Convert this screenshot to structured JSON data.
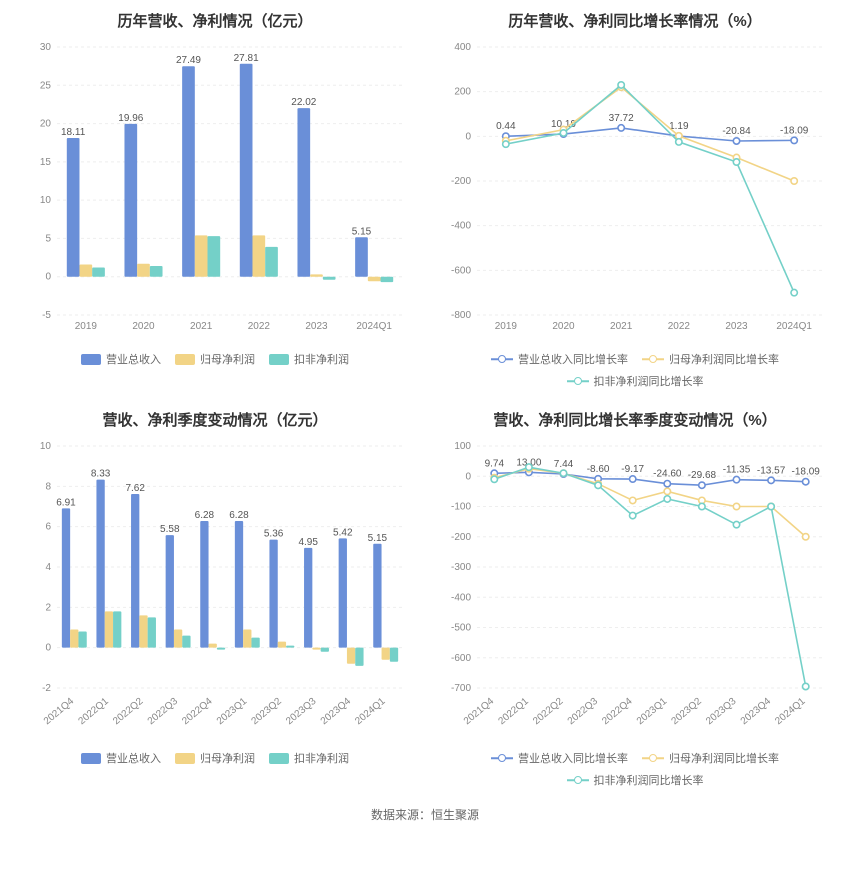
{
  "footer": "数据来源：恒生聚源",
  "colors": {
    "blue": "#6a8fd8",
    "yellow": "#f2d486",
    "teal": "#74d0c8",
    "grid": "#eeeeee",
    "axis": "#cccccc",
    "text": "#888888",
    "value": "#555555",
    "bg": "#ffffff"
  },
  "panels": [
    {
      "title": "历年营收、净利情况（亿元）",
      "type": "bar",
      "categories": [
        "2019",
        "2020",
        "2021",
        "2022",
        "2023",
        "2024Q1"
      ],
      "ylim": [
        -5,
        30
      ],
      "ytick_step": 5,
      "bar_width_ratio": 0.22,
      "series": [
        {
          "name": "营业总收入",
          "color": "#6a8fd8",
          "values": [
            18.11,
            19.96,
            27.49,
            27.81,
            22.02,
            5.15
          ],
          "show_label": true
        },
        {
          "name": "归母净利润",
          "color": "#f2d486",
          "values": [
            1.6,
            1.7,
            5.4,
            5.4,
            0.3,
            -0.6
          ],
          "show_label": false
        },
        {
          "name": "扣非净利润",
          "color": "#74d0c8",
          "values": [
            1.2,
            1.4,
            5.3,
            3.9,
            -0.4,
            -0.7
          ],
          "show_label": false
        }
      ],
      "legend_type": "rect",
      "x_rotate": false
    },
    {
      "title": "历年营收、净利同比增长率情况（%）",
      "type": "line",
      "categories": [
        "2019",
        "2020",
        "2021",
        "2022",
        "2023",
        "2024Q1"
      ],
      "ylim": [
        -800,
        400
      ],
      "ytick_step": 200,
      "series": [
        {
          "name": "营业总收入同比增长率",
          "color": "#6a8fd8",
          "values": [
            0.44,
            10.19,
            37.72,
            1.19,
            -20.84,
            -18.09
          ],
          "show_label": true
        },
        {
          "name": "归母净利润同比增长率",
          "color": "#f2d486",
          "values": [
            -20,
            30,
            220,
            2,
            -95,
            -200
          ],
          "show_label": false
        },
        {
          "name": "扣非净利润同比增长率",
          "color": "#74d0c8",
          "values": [
            -35,
            15,
            230,
            -25,
            -115,
            -700
          ],
          "show_label": false
        }
      ],
      "legend_type": "line",
      "x_rotate": false
    },
    {
      "title": "营收、净利季度变动情况（亿元）",
      "type": "bar",
      "categories": [
        "2021Q4",
        "2022Q1",
        "2022Q2",
        "2022Q3",
        "2022Q4",
        "2023Q1",
        "2023Q2",
        "2023Q3",
        "2023Q4",
        "2024Q1"
      ],
      "ylim": [
        -2,
        10
      ],
      "ytick_step": 2,
      "bar_width_ratio": 0.24,
      "series": [
        {
          "name": "营业总收入",
          "color": "#6a8fd8",
          "values": [
            6.91,
            8.33,
            7.62,
            5.58,
            6.28,
            6.28,
            5.36,
            4.95,
            5.42,
            5.15
          ],
          "show_label": true
        },
        {
          "name": "归母净利润",
          "color": "#f2d486",
          "values": [
            0.9,
            1.8,
            1.6,
            0.9,
            0.2,
            0.9,
            0.3,
            -0.1,
            -0.8,
            -0.6
          ],
          "show_label": false
        },
        {
          "name": "扣非净利润",
          "color": "#74d0c8",
          "values": [
            0.8,
            1.8,
            1.5,
            0.6,
            -0.1,
            0.5,
            0.1,
            -0.2,
            -0.9,
            -0.7
          ],
          "show_label": false
        }
      ],
      "legend_type": "rect",
      "x_rotate": true
    },
    {
      "title": "营收、净利同比增长率季度变动情况（%）",
      "type": "line",
      "categories": [
        "2021Q4",
        "2022Q1",
        "2022Q2",
        "2022Q3",
        "2022Q4",
        "2023Q1",
        "2023Q2",
        "2023Q3",
        "2023Q4",
        "2024Q1"
      ],
      "ylim": [
        -700,
        100
      ],
      "ytick_step": 100,
      "series": [
        {
          "name": "营业总收入同比增长率",
          "color": "#6a8fd8",
          "values": [
            9.74,
            13.0,
            7.44,
            -8.6,
            -9.17,
            -24.6,
            -29.68,
            -11.35,
            -13.57,
            -18.09
          ],
          "show_label": true
        },
        {
          "name": "归母净利润同比增长率",
          "color": "#f2d486",
          "values": [
            -5,
            25,
            10,
            -25,
            -80,
            -50,
            -80,
            -100,
            -100,
            -200
          ],
          "show_label": false
        },
        {
          "name": "扣非净利润同比增长率",
          "color": "#74d0c8",
          "values": [
            -10,
            30,
            10,
            -30,
            -130,
            -75,
            -100,
            -160,
            -100,
            -695
          ],
          "show_label": false
        }
      ],
      "legend_type": "line",
      "x_rotate": true
    }
  ]
}
